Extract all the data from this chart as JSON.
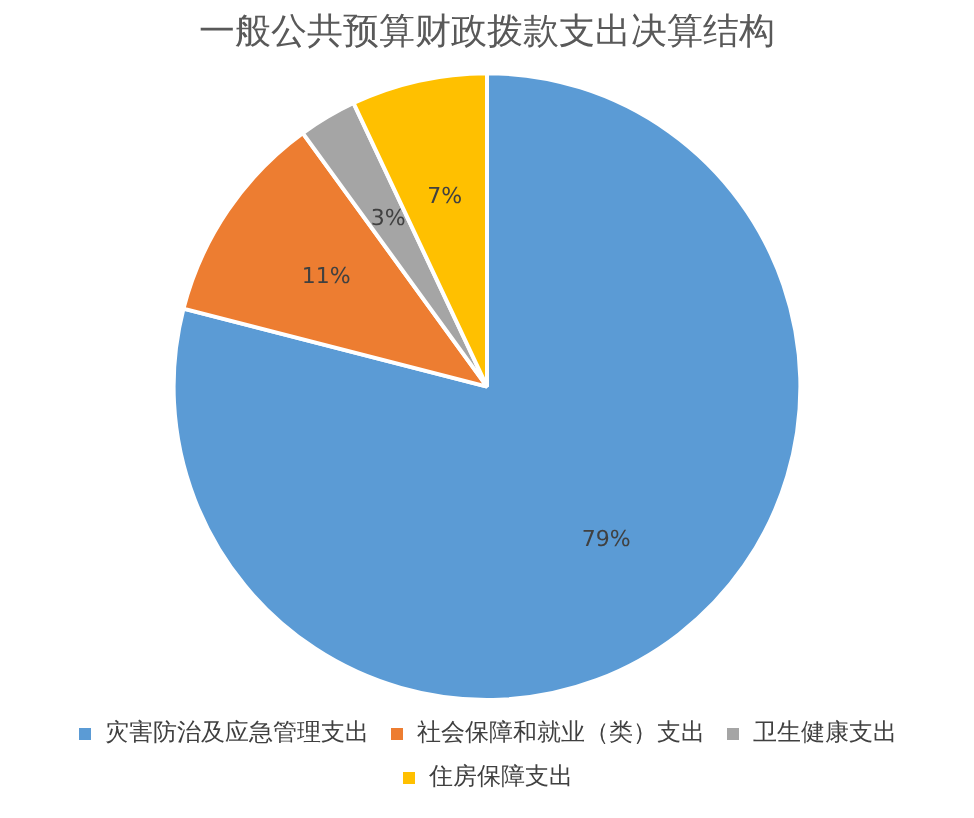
{
  "chart_data": {
    "type": "pie",
    "title": "一般公共预算财政拨款支出决算结构",
    "categories": [
      "灾害防治及应急管理支出",
      "社会保障和就业（类）支出",
      "卫生健康支出",
      "住房保障支出"
    ],
    "values": [
      79,
      11,
      3,
      7
    ],
    "colors": [
      "#5b9bd5",
      "#ed7d31",
      "#a5a5a5",
      "#ffc000"
    ],
    "value_labels": [
      "79%",
      "11%",
      "3%",
      "7%"
    ],
    "legend": "bottom"
  }
}
